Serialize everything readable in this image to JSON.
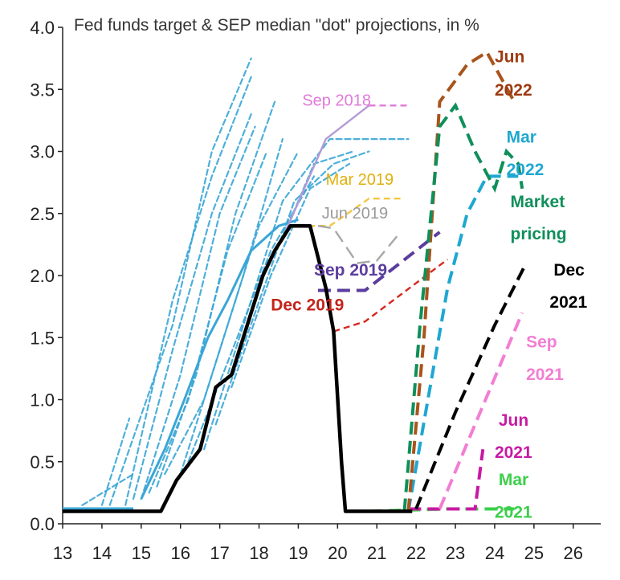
{
  "chart_data": {
    "type": "line",
    "title": "Fed funds target & SEP median \"dot\" projections, in %",
    "xlabel": "",
    "ylabel": "",
    "xlim": [
      13,
      26.7
    ],
    "ylim": [
      0,
      4.0
    ],
    "x_ticks": [
      "13",
      "14",
      "15",
      "16",
      "17",
      "18",
      "19",
      "20",
      "21",
      "22",
      "23",
      "24",
      "25",
      "26"
    ],
    "y_ticks": [
      "0.0",
      "0.5",
      "1.0",
      "1.5",
      "2.0",
      "2.5",
      "3.0",
      "3.5",
      "4.0"
    ],
    "fed_funds_target": {
      "color": "#000000",
      "points": [
        [
          13,
          0.1
        ],
        [
          15.5,
          0.1
        ],
        [
          15.9,
          0.35
        ],
        [
          16.5,
          0.6
        ],
        [
          16.9,
          1.1
        ],
        [
          17.3,
          1.2
        ],
        [
          17.5,
          1.4
        ],
        [
          17.8,
          1.7
        ],
        [
          18.1,
          2.0
        ],
        [
          18.4,
          2.2
        ],
        [
          18.8,
          2.4
        ],
        [
          19.3,
          2.4
        ],
        [
          19.7,
          1.9
        ],
        [
          19.9,
          1.55
        ],
        [
          20.1,
          0.5
        ],
        [
          20.2,
          0.1
        ],
        [
          21.9,
          0.1
        ]
      ]
    },
    "historical_projections": {
      "color": "#3aa6d6",
      "series": [
        {
          "points": [
            [
              14,
              0.15
            ],
            [
              14.7,
              0.85
            ]
          ]
        },
        {
          "points": [
            [
              13.5,
              0.15
            ],
            [
              14.8,
              0.4
            ]
          ]
        },
        {
          "points": [
            [
              14.2,
              0.15
            ],
            [
              15.8,
              1.6
            ],
            [
              16.8,
              3.0
            ],
            [
              17.8,
              3.75
            ]
          ]
        },
        {
          "points": [
            [
              14.6,
              0.15
            ],
            [
              15.8,
              1.8
            ],
            [
              16.8,
              2.8
            ],
            [
              17.8,
              3.6
            ]
          ]
        },
        {
          "points": [
            [
              14.8,
              0.2
            ],
            [
              15.8,
              1.4
            ],
            [
              16.8,
              2.5
            ],
            [
              17.8,
              3.3
            ]
          ]
        },
        {
          "points": [
            [
              15.0,
              0.2
            ],
            [
              16.0,
              1.2
            ],
            [
              17.0,
              2.5
            ],
            [
              17.9,
              3.2
            ]
          ]
        },
        {
          "points": [
            [
              15.2,
              0.25
            ],
            [
              16.2,
              1.0
            ],
            [
              17.2,
              2.2
            ],
            [
              18.2,
              3.0
            ]
          ]
        },
        {
          "points": [
            [
              15.4,
              0.3
            ],
            [
              16.4,
              1.2
            ],
            [
              17.4,
              2.5
            ],
            [
              18.4,
              3.4
            ]
          ]
        },
        {
          "points": [
            [
              15.6,
              0.4
            ],
            [
              16.6,
              1.0
            ],
            [
              17.6,
              2.0
            ],
            [
              18.6,
              3.1
            ]
          ]
        },
        {
          "points": [
            [
              16.0,
              0.4
            ],
            [
              17.0,
              1.4
            ],
            [
              18.0,
              2.4
            ],
            [
              19.0,
              3.0
            ]
          ]
        },
        {
          "points": [
            [
              16.2,
              0.5
            ],
            [
              17.2,
              1.3
            ],
            [
              18.3,
              2.2
            ],
            [
              19.4,
              2.8
            ]
          ]
        },
        {
          "points": [
            [
              16.6,
              0.6
            ],
            [
              17.6,
              1.6
            ],
            [
              18.6,
              2.6
            ],
            [
              19.8,
              3.1
            ],
            [
              20.8,
              3.1
            ],
            [
              21.8,
              3.1
            ]
          ]
        },
        {
          "points": [
            [
              16.9,
              0.8
            ],
            [
              17.9,
              1.7
            ],
            [
              18.9,
              2.6
            ],
            [
              19.9,
              2.9
            ],
            [
              20.8,
              3.0
            ]
          ]
        },
        {
          "points": [
            [
              17.3,
              1.1
            ],
            [
              18.3,
              2.0
            ],
            [
              19.3,
              2.7
            ],
            [
              20.3,
              2.9
            ]
          ]
        },
        {
          "points": [
            [
              18.6,
              2.3
            ],
            [
              19.4,
              2.9
            ],
            [
              20.4,
              3.0
            ]
          ]
        }
      ]
    },
    "sep_projections": [
      {
        "name": "Sep 2018",
        "color": "#e07ad9",
        "dash": true,
        "points": [
          [
            20.8,
            3.37
          ],
          [
            21.8,
            3.37
          ]
        ]
      },
      {
        "name": "Sep 2018 (history)",
        "color": "#b39ad6",
        "dash": false,
        "points": [
          [
            18.6,
            2.3
          ],
          [
            19.7,
            3.1
          ],
          [
            20.8,
            3.37
          ]
        ]
      },
      {
        "name": "Mar 2019",
        "color": "#f4c542",
        "points": [
          [
            19.0,
            2.4
          ],
          [
            19.8,
            2.4
          ],
          [
            20.8,
            2.62
          ],
          [
            21.6,
            2.62
          ]
        ]
      },
      {
        "name": "Jun 2019",
        "color": "#a8a8a8",
        "points": [
          [
            19.5,
            2.4
          ],
          [
            19.9,
            2.38
          ],
          [
            20.5,
            2.1
          ],
          [
            21.0,
            2.12
          ],
          [
            21.6,
            2.35
          ]
        ]
      },
      {
        "name": "Sep 2019",
        "color": "#5b3d9e",
        "points": [
          [
            19.5,
            1.88
          ],
          [
            20.7,
            1.88
          ],
          [
            22.6,
            2.35
          ]
        ]
      },
      {
        "name": "Dec 2019",
        "color": "#d6281f",
        "points": [
          [
            19.9,
            1.55
          ],
          [
            20.7,
            1.63
          ],
          [
            22.8,
            2.13
          ]
        ]
      },
      {
        "name": "Mar 2021",
        "color": "#3ccf4a",
        "points": [
          [
            20.8,
            0.1
          ],
          [
            22.8,
            0.12
          ],
          [
            24.5,
            0.12
          ]
        ]
      },
      {
        "name": "Jun 2021",
        "color": "#c71aa4",
        "points": [
          [
            21.8,
            0.12
          ],
          [
            23.0,
            0.12
          ],
          [
            23.5,
            0.12
          ],
          [
            23.7,
            0.6
          ]
        ]
      },
      {
        "name": "Sep 2021",
        "color": "#f27ed4",
        "points": [
          [
            22.6,
            0.12
          ],
          [
            23.5,
            0.8
          ],
          [
            24.7,
            1.7
          ]
        ]
      },
      {
        "name": "Dec 2021",
        "color": "#000000",
        "points": [
          [
            22.0,
            0.12
          ],
          [
            23.0,
            0.9
          ],
          [
            24.0,
            1.6
          ],
          [
            24.8,
            2.1
          ]
        ]
      },
      {
        "name": "Mar 2022",
        "color": "#1fa7d1",
        "points": [
          [
            21.8,
            0.1
          ],
          [
            22.3,
            1.0
          ],
          [
            22.8,
            1.9
          ],
          [
            23.3,
            2.5
          ],
          [
            23.8,
            2.8
          ],
          [
            24.6,
            2.8
          ]
        ]
      },
      {
        "name": "Jun 2022",
        "color": "#a8541c",
        "points": [
          [
            21.8,
            0.1
          ],
          [
            22.2,
            1.5
          ],
          [
            22.6,
            3.4
          ],
          [
            23.3,
            3.7
          ],
          [
            23.8,
            3.8
          ],
          [
            24.5,
            3.4
          ]
        ]
      },
      {
        "name": "Market pricing",
        "color": "#0f8f5a",
        "points": [
          [
            21.7,
            0.1
          ],
          [
            22.1,
            1.6
          ],
          [
            22.6,
            3.2
          ],
          [
            23.0,
            3.37
          ],
          [
            23.5,
            3.0
          ],
          [
            24.0,
            2.7
          ],
          [
            24.3,
            3.0
          ],
          [
            24.6,
            2.9
          ],
          [
            24.7,
            2.7
          ]
        ]
      }
    ],
    "labels": [
      {
        "text": "Sep 2018",
        "color": "#e07ad9",
        "x": 19.1,
        "y": 3.37
      },
      {
        "text": "Mar 2019",
        "color": "#e0b00c",
        "x": 19.7,
        "y": 2.73
      },
      {
        "text": "Jun 2019",
        "color": "#9a9a9a",
        "x": 19.6,
        "y": 2.46
      },
      {
        "text": "Sep 2019",
        "color": "#5b3d9e",
        "x": 19.4,
        "y": 2.0
      },
      {
        "text": "Dec 2019",
        "color": "#c3241b",
        "x": 18.3,
        "y": 1.72
      },
      {
        "text": "Jun",
        "color": "#9e3a11",
        "x": 24.0,
        "y": 3.72
      },
      {
        "text": "2022",
        "color": "#9e3a11",
        "x": 24.0,
        "y": 3.45
      },
      {
        "text": "Mar",
        "color": "#1fa7d1",
        "x": 24.3,
        "y": 3.07
      },
      {
        "text": "2022",
        "color": "#1fa7d1",
        "x": 24.3,
        "y": 2.81
      },
      {
        "text": "Market",
        "color": "#0f8f5a",
        "x": 24.4,
        "y": 2.55
      },
      {
        "text": "pricing",
        "color": "#0f8f5a",
        "x": 24.4,
        "y": 2.29
      },
      {
        "text": "Dec",
        "color": "#000000",
        "x": 25.5,
        "y": 2.0
      },
      {
        "text": "2021",
        "color": "#000000",
        "x": 25.4,
        "y": 1.74
      },
      {
        "text": "Sep",
        "color": "#f27ed4",
        "x": 24.8,
        "y": 1.42
      },
      {
        "text": "2021",
        "color": "#f27ed4",
        "x": 24.8,
        "y": 1.16
      },
      {
        "text": "Jun",
        "color": "#c71aa4",
        "x": 24.1,
        "y": 0.79
      },
      {
        "text": "2021",
        "color": "#c71aa4",
        "x": 24.0,
        "y": 0.53
      },
      {
        "text": "Mar",
        "color": "#3ccf4a",
        "x": 24.1,
        "y": 0.31
      },
      {
        "text": "2021",
        "color": "#3ccf4a",
        "x": 24.0,
        "y": 0.05
      }
    ]
  }
}
